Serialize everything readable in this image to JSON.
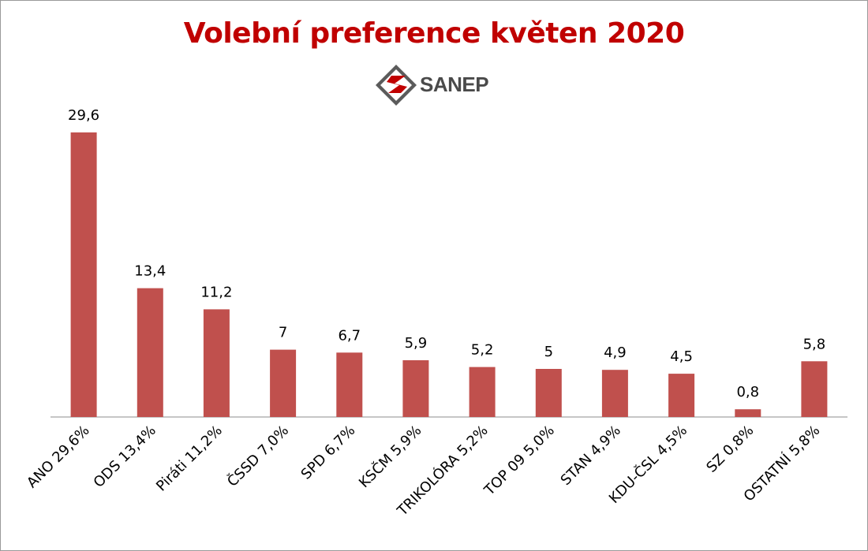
{
  "chart_data": {
    "type": "bar",
    "title": "Volební preference květen 2020",
    "categories": [
      "ANO 29,6%",
      "ODS 13,4%",
      "Piráti 11,2%",
      "ČSSD 7,0%",
      "SPD 6,7%",
      "KSČM 5,9%",
      "TRIKOLÓRA 5,2%",
      "TOP 09 5,0%",
      "STAN 4,9%",
      "KDU-ČSL 4,5%",
      "SZ 0,8%",
      "OSTATNÍ 5,8%"
    ],
    "values": [
      29.6,
      13.4,
      11.2,
      7,
      6.7,
      5.9,
      5.2,
      5,
      4.9,
      4.5,
      0.8,
      5.8
    ],
    "data_labels": [
      "29,6",
      "13,4",
      "11,2",
      "7",
      "6,7",
      "5,9",
      "5,2",
      "5",
      "4,9",
      "4,5",
      "0,8",
      "5,8"
    ],
    "xlabel": "",
    "ylabel": "",
    "grid": false,
    "legend": "none",
    "bar_color": "#c0504d"
  },
  "logo": {
    "text": "SANEP",
    "icon": "sanep-logo-icon"
  },
  "colors": {
    "title": "#c00000",
    "axis": "#8c8c8c",
    "text": "#000000"
  }
}
